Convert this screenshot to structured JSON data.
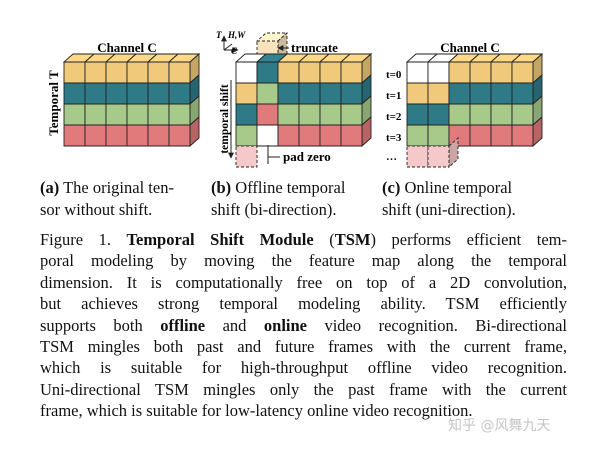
{
  "colors": {
    "orange": "#F0C97A",
    "blue": "#2E7A87",
    "green": "#A7C98A",
    "red": "#E17A7A",
    "red_faded": "#F5C9C9",
    "orange_faded": "#F7E3BD",
    "white": "#FFFFFF",
    "stroke": "#222222"
  },
  "figure": {
    "panel_a": {
      "channel_label": "Channel C",
      "temporal_label": "Temporal T"
    },
    "panel_b": {
      "axis_t": "T",
      "axis_hw": "H,W",
      "axis_c": "C",
      "truncate_label": "truncate",
      "temporal_shift_label": "temporal shift",
      "pad_zero_label": "pad zero"
    },
    "panel_c": {
      "channel_label": "Channel C",
      "time_labels": [
        "t=0",
        "t=1",
        "t=2",
        "t=3",
        "…"
      ]
    }
  },
  "subcaptions": {
    "a": {
      "tag": "(a)",
      "line1": " The original ten-",
      "line2": "sor without shift."
    },
    "b": {
      "tag": "(b)",
      "line1": " Offline temporal",
      "line2": "shift (bi-direction)."
    },
    "c": {
      "tag": "(c)",
      "line1": " Online temporal",
      "line2": "shift (uni-direction)."
    }
  },
  "caption": {
    "l1_a": "Figure 1. ",
    "l1_b": "Temporal Shift Module",
    "l1_c": " (",
    "l1_d": "TSM",
    "l1_e": ") performs efficient tem-",
    "l2": "poral modeling by moving the feature map along the temporal",
    "l3": "dimension. It is computationally free on top of a 2D convolution,",
    "l4": "but achieves strong temporal modeling ability.  TSM efficiently",
    "l5_a": "supports both ",
    "l5_b": "offline",
    "l5_c": " and ",
    "l5_d": "online",
    "l5_e": " video recognition. Bi-directional",
    "l6": "TSM mingles both past and future frames with the current frame,",
    "l7": "which is suitable for high-throughput offline video recognition.",
    "l8": "Uni-directional TSM mingles only the past frame with the current",
    "l9": "frame, which is suitable for low-latency online video recognition."
  },
  "watermark": "知乎 @风舞九天"
}
